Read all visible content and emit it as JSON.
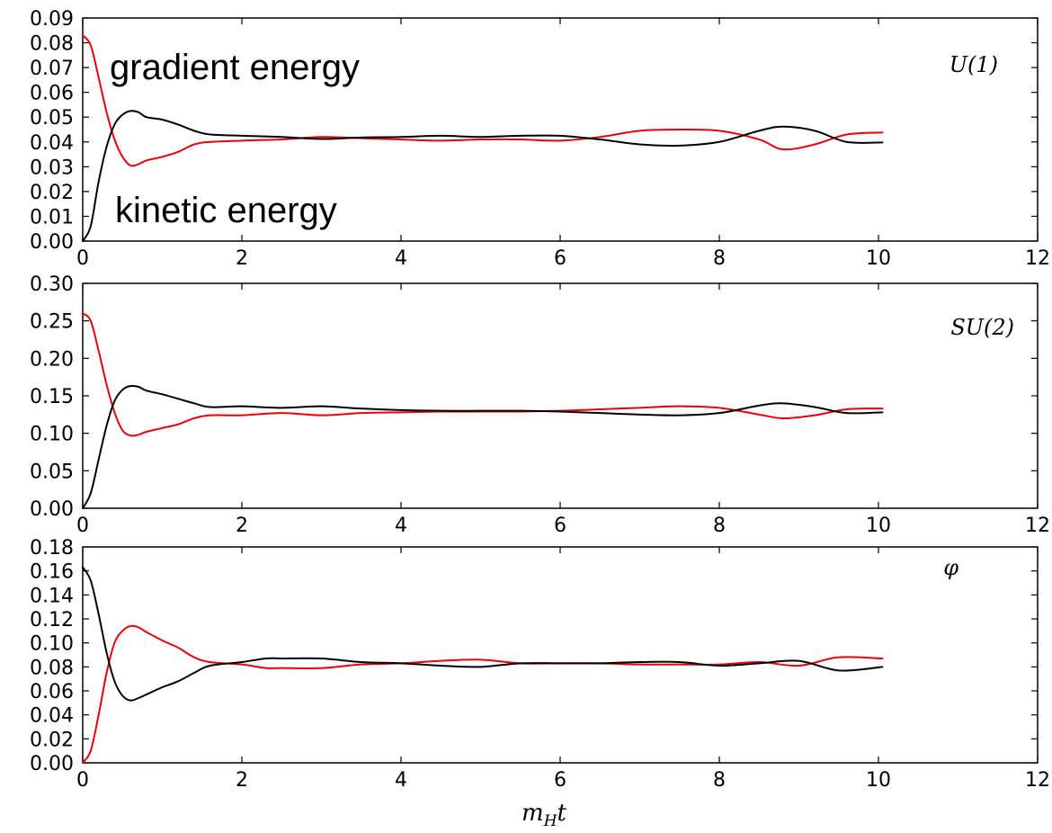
{
  "chart_data": [
    {
      "type": "line",
      "panel_label": "U(1)",
      "annotations": [
        "gradient energy",
        "kinetic energy"
      ],
      "xlim": [
        0,
        12
      ],
      "ylim": [
        0,
        0.09
      ],
      "xticks": [
        "0",
        "2",
        "4",
        "6",
        "8",
        "10",
        "12"
      ],
      "yticks": [
        "0.00",
        "0.01",
        "0.02",
        "0.03",
        "0.04",
        "0.05",
        "0.06",
        "0.07",
        "0.08",
        "0.09"
      ],
      "grid": false,
      "series": [
        {
          "color": "#e8000b",
          "x": [
            0,
            0.1,
            0.2,
            0.3,
            0.4,
            0.5,
            0.6,
            0.7,
            0.8,
            1.0,
            1.2,
            1.4,
            1.6,
            2.0,
            2.5,
            3.0,
            3.5,
            4.0,
            4.5,
            5.0,
            5.5,
            6.0,
            6.5,
            7.0,
            7.5,
            8.0,
            8.5,
            8.8,
            9.2,
            9.6,
            10.05
          ],
          "y": [
            0.083,
            0.079,
            0.066,
            0.052,
            0.041,
            0.034,
            0.0305,
            0.031,
            0.0325,
            0.034,
            0.036,
            0.039,
            0.04,
            0.0405,
            0.041,
            0.042,
            0.0415,
            0.041,
            0.0405,
            0.041,
            0.041,
            0.0405,
            0.042,
            0.0445,
            0.045,
            0.0445,
            0.041,
            0.037,
            0.039,
            0.043,
            0.0438
          ]
        },
        {
          "color": "#000000",
          "x": [
            0,
            0.1,
            0.2,
            0.3,
            0.4,
            0.5,
            0.6,
            0.7,
            0.8,
            1.0,
            1.2,
            1.4,
            1.6,
            2.0,
            2.5,
            3.0,
            3.5,
            4.0,
            4.5,
            5.0,
            5.5,
            6.0,
            6.5,
            7.0,
            7.5,
            8.0,
            8.5,
            8.8,
            9.2,
            9.6,
            10.05
          ],
          "y": [
            0.0,
            0.006,
            0.024,
            0.038,
            0.047,
            0.051,
            0.0525,
            0.052,
            0.05,
            0.049,
            0.047,
            0.0445,
            0.043,
            0.0425,
            0.042,
            0.0412,
            0.0418,
            0.042,
            0.0425,
            0.042,
            0.0425,
            0.0425,
            0.041,
            0.039,
            0.0385,
            0.04,
            0.0445,
            0.0462,
            0.0445,
            0.04,
            0.0398
          ]
        }
      ]
    },
    {
      "type": "line",
      "panel_label": "SU(2)",
      "xlim": [
        0,
        12
      ],
      "ylim": [
        0,
        0.3
      ],
      "xticks": [
        "0",
        "2",
        "4",
        "6",
        "8",
        "10",
        "12"
      ],
      "yticks": [
        "0.00",
        "0.05",
        "0.10",
        "0.15",
        "0.20",
        "0.25",
        "0.30"
      ],
      "grid": false,
      "series": [
        {
          "color": "#e8000b",
          "x": [
            0,
            0.1,
            0.2,
            0.3,
            0.4,
            0.5,
            0.6,
            0.7,
            0.8,
            1.0,
            1.2,
            1.4,
            1.6,
            2.0,
            2.5,
            3.0,
            3.5,
            4.0,
            4.5,
            5.0,
            5.5,
            6.0,
            6.5,
            7.0,
            7.5,
            8.0,
            8.5,
            8.8,
            9.2,
            9.6,
            10.05
          ],
          "y": [
            0.26,
            0.25,
            0.21,
            0.165,
            0.128,
            0.104,
            0.097,
            0.098,
            0.102,
            0.107,
            0.112,
            0.12,
            0.124,
            0.124,
            0.127,
            0.124,
            0.127,
            0.128,
            0.129,
            0.129,
            0.129,
            0.13,
            0.132,
            0.134,
            0.136,
            0.134,
            0.125,
            0.12,
            0.124,
            0.132,
            0.133
          ]
        },
        {
          "color": "#000000",
          "x": [
            0,
            0.1,
            0.2,
            0.3,
            0.4,
            0.5,
            0.6,
            0.7,
            0.8,
            1.0,
            1.2,
            1.4,
            1.6,
            2.0,
            2.5,
            3.0,
            3.5,
            4.0,
            4.5,
            5.0,
            5.5,
            6.0,
            6.5,
            7.0,
            7.5,
            8.0,
            8.5,
            8.8,
            9.2,
            9.6,
            10.05
          ],
          "y": [
            0.0,
            0.02,
            0.065,
            0.11,
            0.143,
            0.158,
            0.163,
            0.162,
            0.157,
            0.152,
            0.146,
            0.14,
            0.135,
            0.136,
            0.134,
            0.136,
            0.133,
            0.131,
            0.13,
            0.13,
            0.13,
            0.129,
            0.127,
            0.125,
            0.124,
            0.127,
            0.137,
            0.14,
            0.135,
            0.127,
            0.128
          ]
        }
      ]
    },
    {
      "type": "line",
      "panel_label": "φ",
      "xlabel": "m_H t",
      "xlim": [
        0,
        12
      ],
      "ylim": [
        0,
        0.18
      ],
      "xticks": [
        "0",
        "2",
        "4",
        "6",
        "8",
        "10",
        "12"
      ],
      "yticks": [
        "0.00",
        "0.02",
        "0.04",
        "0.06",
        "0.08",
        "0.10",
        "0.12",
        "0.14",
        "0.16",
        "0.18"
      ],
      "grid": false,
      "series": [
        {
          "color": "#e8000b",
          "x": [
            0,
            0.1,
            0.2,
            0.3,
            0.4,
            0.5,
            0.6,
            0.7,
            0.8,
            1.0,
            1.2,
            1.4,
            1.6,
            2.0,
            2.3,
            2.5,
            3.0,
            3.5,
            4.0,
            4.5,
            5.0,
            5.5,
            6.0,
            6.5,
            7.0,
            7.5,
            8.0,
            8.5,
            9.0,
            9.5,
            10.05
          ],
          "y": [
            0.0,
            0.01,
            0.04,
            0.075,
            0.1,
            0.11,
            0.114,
            0.113,
            0.109,
            0.102,
            0.096,
            0.088,
            0.084,
            0.082,
            0.079,
            0.079,
            0.079,
            0.082,
            0.083,
            0.085,
            0.086,
            0.083,
            0.083,
            0.083,
            0.082,
            0.082,
            0.082,
            0.084,
            0.081,
            0.088,
            0.087
          ]
        },
        {
          "color": "#000000",
          "x": [
            0,
            0.1,
            0.2,
            0.3,
            0.4,
            0.5,
            0.6,
            0.7,
            0.8,
            1.0,
            1.2,
            1.4,
            1.6,
            2.0,
            2.3,
            2.5,
            3.0,
            3.5,
            4.0,
            4.5,
            5.0,
            5.5,
            6.0,
            6.5,
            7.0,
            7.5,
            8.0,
            8.5,
            9.0,
            9.5,
            10.05
          ],
          "y": [
            0.163,
            0.152,
            0.124,
            0.092,
            0.068,
            0.056,
            0.052,
            0.054,
            0.057,
            0.063,
            0.068,
            0.075,
            0.081,
            0.084,
            0.087,
            0.087,
            0.087,
            0.084,
            0.083,
            0.081,
            0.08,
            0.083,
            0.083,
            0.083,
            0.084,
            0.084,
            0.081,
            0.083,
            0.085,
            0.077,
            0.08
          ]
        }
      ]
    }
  ]
}
